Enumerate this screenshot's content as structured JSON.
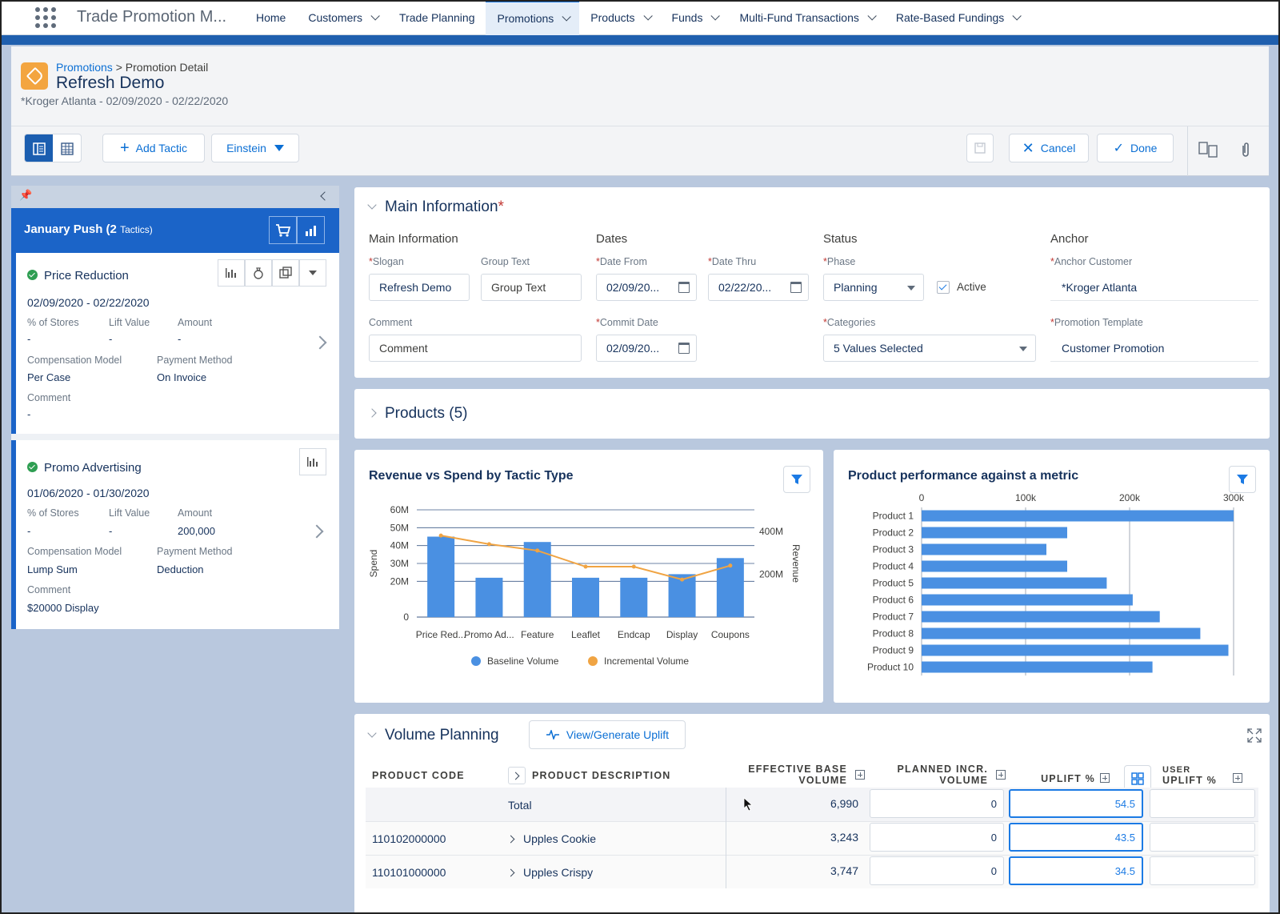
{
  "app_name": "Trade Promotion M...",
  "nav": [
    "Home",
    "Customers",
    "Trade Planning",
    "Promotions",
    "Products",
    "Funds",
    "Multi-Fund Transactions",
    "Rate-Based Fundings"
  ],
  "header": {
    "breadcrumb_parent": "Promotions",
    "breadcrumb_sep": ">",
    "breadcrumb_current": "Promotion Detail",
    "title": "Refresh Demo",
    "subtitle": "*Kroger Atlanta - 02/09/2020 - 02/22/2020"
  },
  "toolbar": {
    "add_tactic": "Add Tactic",
    "einstein": "Einstein",
    "cancel": "Cancel",
    "done": "Done"
  },
  "left": {
    "group_title": "January Push",
    "group_count": "(2",
    "group_suffix": "Tactics)",
    "tactics": [
      {
        "name": "Price Reduction",
        "dates": "02/09/2020 - 02/22/2020",
        "stores_label": "% of Stores",
        "stores": "-",
        "lift_label": "Lift Value",
        "lift": "-",
        "amount_label": "Amount",
        "amount": "-",
        "comp_label": "Compensation Model",
        "comp": "Per Case",
        "pay_label": "Payment Method",
        "pay": "On Invoice",
        "comment_label": "Comment",
        "comment": "-"
      },
      {
        "name": "Promo Advertising",
        "dates": "01/06/2020 - 01/30/2020",
        "stores_label": "% of Stores",
        "stores": "-",
        "lift_label": "Lift Value",
        "lift": "-",
        "amount_label": "Amount",
        "amount": "200,000",
        "comp_label": "Compensation Model",
        "comp": "Lump Sum",
        "pay_label": "Payment Method",
        "pay": "Deduction",
        "comment_label": "Comment",
        "comment": "$20000 Display"
      }
    ]
  },
  "main_info": {
    "title": "Main Information",
    "groups": {
      "main": "Main Information",
      "dates": "Dates",
      "status": "Status",
      "anchor": "Anchor"
    },
    "slogan_label": "Slogan",
    "slogan": "Refresh Demo",
    "group_text_label": "Group Text",
    "group_text_placeholder": "Group Text",
    "date_from_label": "Date From",
    "date_from": "02/09/20...",
    "date_thru_label": "Date Thru",
    "date_thru": "02/22/20...",
    "phase_label": "Phase",
    "phase": "Planning",
    "active_label": "Active",
    "anchor_customer_label": "Anchor Customer",
    "anchor_customer": "*Kroger Atlanta",
    "comment_label": "Comment",
    "comment_placeholder": "Comment",
    "commit_date_label": "Commit Date",
    "commit_date": "02/09/20...",
    "categories_label": "Categories",
    "categories": "5 Values Selected",
    "template_label": "Promotion Template",
    "template": "Customer Promotion"
  },
  "products": {
    "title": "Products (5)"
  },
  "chart_data": [
    {
      "type": "bar",
      "title": "Revenue vs Spend by Tactic Type",
      "categories": [
        "Price Red...",
        "Promo Ad...",
        "Feature",
        "Leaflet",
        "Endcap",
        "Display",
        "Coupons"
      ],
      "series": [
        {
          "name": "Baseline Volume",
          "type": "bar",
          "axis": "left",
          "values": [
            45,
            22,
            42,
            22,
            22,
            24,
            33
          ],
          "color": "#4a90e2"
        },
        {
          "name": "Incremental Volume",
          "type": "line",
          "axis": "right",
          "values": [
            380,
            340,
            310,
            235,
            235,
            175,
            240
          ],
          "color": "#f0a443"
        }
      ],
      "ylabel": "Spend",
      "y2label": "Revenue",
      "ylim": [
        0,
        60
      ],
      "y2lim": [
        0,
        500
      ],
      "yticks": [
        "0",
        "20M",
        "30M",
        "40M",
        "50M",
        "60M"
      ],
      "y2ticks": [
        "200M",
        "400M"
      ],
      "legend": "bottom",
      "grid": true
    },
    {
      "type": "bar",
      "orientation": "horizontal",
      "title": "Product performance against a metric",
      "categories": [
        "Product 1",
        "Product 2",
        "Product 3",
        "Product 4",
        "Product 5",
        "Product 6",
        "Product 7",
        "Product 8",
        "Product 9",
        "Product 10"
      ],
      "values": [
        300000,
        140000,
        120000,
        140000,
        178000,
        203000,
        229000,
        268000,
        295000,
        222000
      ],
      "xlim": [
        0,
        300000
      ],
      "xticks": [
        "0",
        "100k",
        "200k",
        "300k"
      ],
      "color": "#4a90e2",
      "grid": true
    }
  ],
  "volume": {
    "title": "Volume Planning",
    "generate": "View/Generate Uplift",
    "headers": {
      "code": "PRODUCT CODE",
      "desc": "PRODUCT DESCRIPTION",
      "base1": "EFFECTIVE BASE",
      "base2": "VOLUME",
      "incr1": "PLANNED INCR.",
      "incr2": "VOLUME",
      "uplift": "UPLIFT %",
      "user1": "USER",
      "user2": "UPLIFT %"
    },
    "rows": [
      {
        "code": "",
        "desc": "Total",
        "base": "6,990",
        "incr": "0",
        "uplift": "54.5",
        "user": ""
      },
      {
        "code": "110102000000",
        "desc": "Upples Cookie",
        "base": "3,243",
        "incr": "0",
        "uplift": "43.5",
        "user": ""
      },
      {
        "code": "110101000000",
        "desc": "Upples Crispy",
        "base": "3,747",
        "incr": "0",
        "uplift": "34.5",
        "user": ""
      }
    ]
  }
}
